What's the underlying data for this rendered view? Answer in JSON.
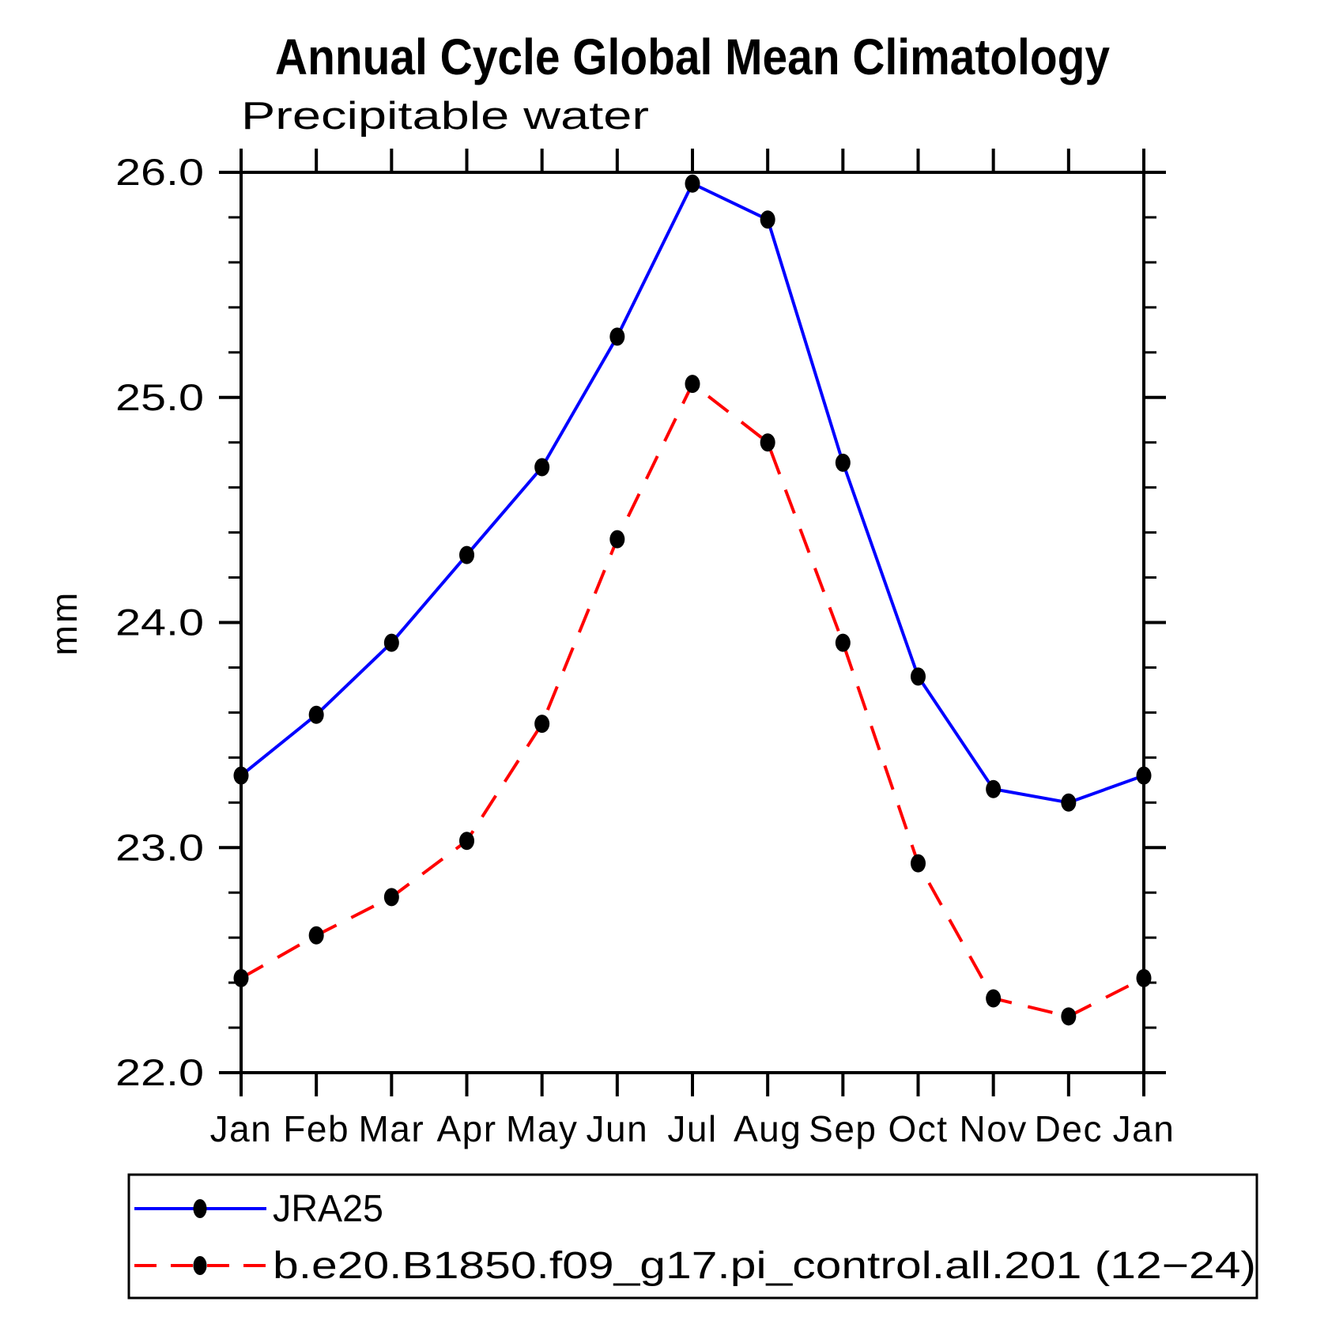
{
  "figure": {
    "background": "#ffffff",
    "axis_color": "#000000"
  },
  "chart_data": {
    "type": "line",
    "title": "Annual Cycle Global Mean Climatology",
    "subtitle": "Precipitable water",
    "ylabel": "mm",
    "xlabel": "",
    "categories": [
      "Jan",
      "Feb",
      "Mar",
      "Apr",
      "May",
      "Jun",
      "Jul",
      "Aug",
      "Sep",
      "Oct",
      "Nov",
      "Dec",
      "Jan"
    ],
    "ylim": [
      22.0,
      26.0
    ],
    "ytick_major": [
      22.0,
      23.0,
      24.0,
      25.0,
      26.0
    ],
    "ytick_labels": [
      "22.0",
      "23.0",
      "24.0",
      "25.0",
      "26.0"
    ],
    "ytick_minor_step": 0.2,
    "grid": false,
    "legend_position": "bottom-left-box",
    "series": [
      {
        "name": "JRA25",
        "color": "#0000ff",
        "line_style": "solid",
        "marker": "filled-circle",
        "marker_color": "#000000",
        "values": [
          23.32,
          23.59,
          23.91,
          24.3,
          24.69,
          25.27,
          25.95,
          25.79,
          24.71,
          23.76,
          23.26,
          23.2,
          23.32
        ]
      },
      {
        "name": "b.e20.B1850.f09_g17.pi_control.all.201 (12−24)",
        "color": "#ff0000",
        "line_style": "dashed",
        "marker": "filled-circle",
        "marker_color": "#000000",
        "values": [
          22.42,
          22.61,
          22.78,
          23.03,
          23.55,
          24.37,
          25.06,
          24.8,
          23.91,
          22.93,
          22.33,
          22.25,
          22.42
        ]
      }
    ]
  }
}
